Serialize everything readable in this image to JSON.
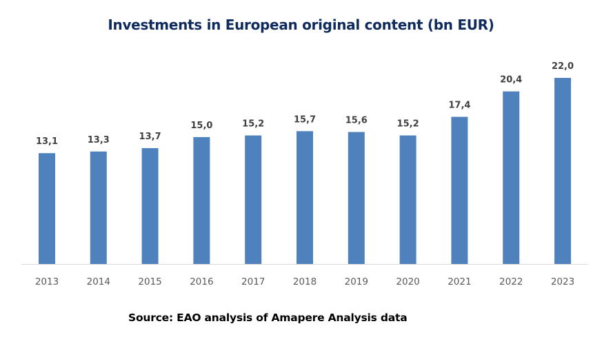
{
  "chart_data": {
    "type": "bar",
    "title": "Investments in European original content (bn EUR)",
    "xlabel": "",
    "ylabel": "",
    "categories": [
      "2013",
      "2014",
      "2015",
      "2016",
      "2017",
      "2018",
      "2019",
      "2020",
      "2021",
      "2022",
      "2023"
    ],
    "values": [
      13.1,
      13.3,
      13.7,
      15.0,
      15.2,
      15.7,
      15.6,
      15.2,
      17.4,
      20.4,
      22.0
    ],
    "data_labels": [
      "13,1",
      "13,3",
      "13,7",
      "15,0",
      "15,2",
      "15,7",
      "15,6",
      "15,2",
      "17,4",
      "20,4",
      "22,0"
    ],
    "ylim": [
      0,
      22
    ],
    "grid": false,
    "legend": "none",
    "bar_color": "#4f81bd",
    "source": "Source: EAO analysis of Amapere Analysis data"
  }
}
